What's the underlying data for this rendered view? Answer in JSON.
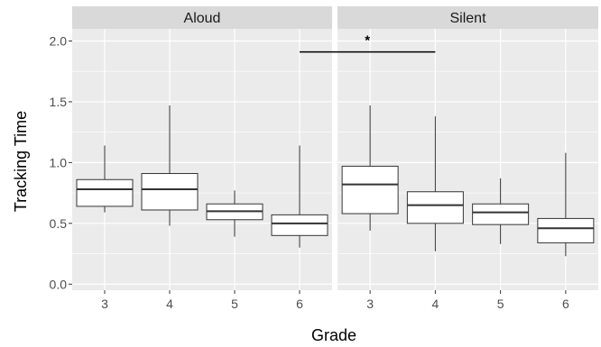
{
  "chart_data": {
    "type": "boxplot",
    "xlabel": "Grade",
    "ylabel": "Tracking Time",
    "ylim": [
      -0.05,
      2.1
    ],
    "yticks": [
      "0.0",
      "0.5",
      "1.0",
      "1.5",
      "2.0"
    ],
    "grid": true,
    "panels": [
      {
        "label": "Aloud",
        "categories": [
          "3",
          "4",
          "5",
          "6"
        ],
        "boxes": [
          {
            "category": "3",
            "whisker_low": 0.59,
            "q1": 0.64,
            "median": 0.78,
            "q3": 0.86,
            "whisker_high": 1.14
          },
          {
            "category": "4",
            "whisker_low": 0.48,
            "q1": 0.61,
            "median": 0.78,
            "q3": 0.91,
            "whisker_high": 1.47
          },
          {
            "category": "5",
            "whisker_low": 0.39,
            "q1": 0.53,
            "median": 0.6,
            "q3": 0.66,
            "whisker_high": 0.77
          },
          {
            "category": "6",
            "whisker_low": 0.3,
            "q1": 0.4,
            "median": 0.5,
            "q3": 0.57,
            "whisker_high": 1.14
          }
        ]
      },
      {
        "label": "Silent",
        "categories": [
          "3",
          "4",
          "5",
          "6"
        ],
        "boxes": [
          {
            "category": "3",
            "whisker_low": 0.44,
            "q1": 0.58,
            "median": 0.82,
            "q3": 0.97,
            "whisker_high": 1.47
          },
          {
            "category": "4",
            "whisker_low": 0.27,
            "q1": 0.5,
            "median": 0.65,
            "q3": 0.76,
            "whisker_high": 1.38
          },
          {
            "category": "5",
            "whisker_low": 0.33,
            "q1": 0.49,
            "median": 0.59,
            "q3": 0.66,
            "whisker_high": 0.87
          },
          {
            "category": "6",
            "whisker_low": 0.23,
            "q1": 0.34,
            "median": 0.46,
            "q3": 0.54,
            "whisker_high": 1.08
          }
        ]
      }
    ],
    "annotation": {
      "text": "*",
      "y_value": 1.91,
      "from": {
        "panel": "Aloud",
        "category": "6"
      },
      "to": {
        "panel": "Silent",
        "category": "4"
      }
    }
  },
  "colors": {
    "panel_background": "#ebebeb",
    "strip_background": "#d9d9d9",
    "gridline": "#ffffff",
    "box_fill": "#ffffff",
    "box_stroke": "#333333",
    "annotation_line": "#000000"
  }
}
